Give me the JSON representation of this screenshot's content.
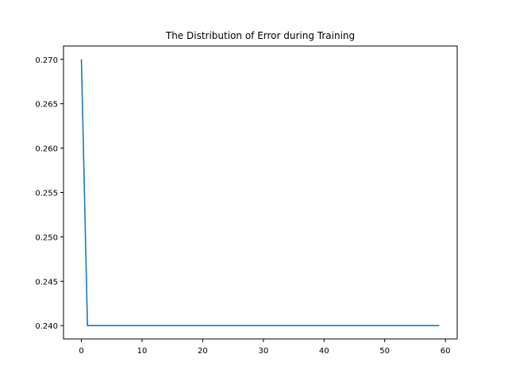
{
  "chart_data": {
    "type": "line",
    "title": "The Distribution of Error during Training",
    "xlabel": "",
    "ylabel": "",
    "xlim": [
      -2.95,
      61.95
    ],
    "ylim": [
      0.2385,
      0.2715
    ],
    "x_ticks": [
      0,
      10,
      20,
      30,
      40,
      50,
      60
    ],
    "x_tick_labels": [
      "0",
      "10",
      "20",
      "30",
      "40",
      "50",
      "60"
    ],
    "y_ticks": [
      0.24,
      0.245,
      0.25,
      0.255,
      0.26,
      0.265,
      0.27
    ],
    "y_tick_labels": [
      "0.240",
      "0.245",
      "0.250",
      "0.255",
      "0.260",
      "0.265",
      "0.270"
    ],
    "grid": false,
    "series": [
      {
        "color": "#1f77b4",
        "x": [
          0,
          1,
          59
        ],
        "y": [
          0.27,
          0.24,
          0.24
        ]
      }
    ]
  }
}
